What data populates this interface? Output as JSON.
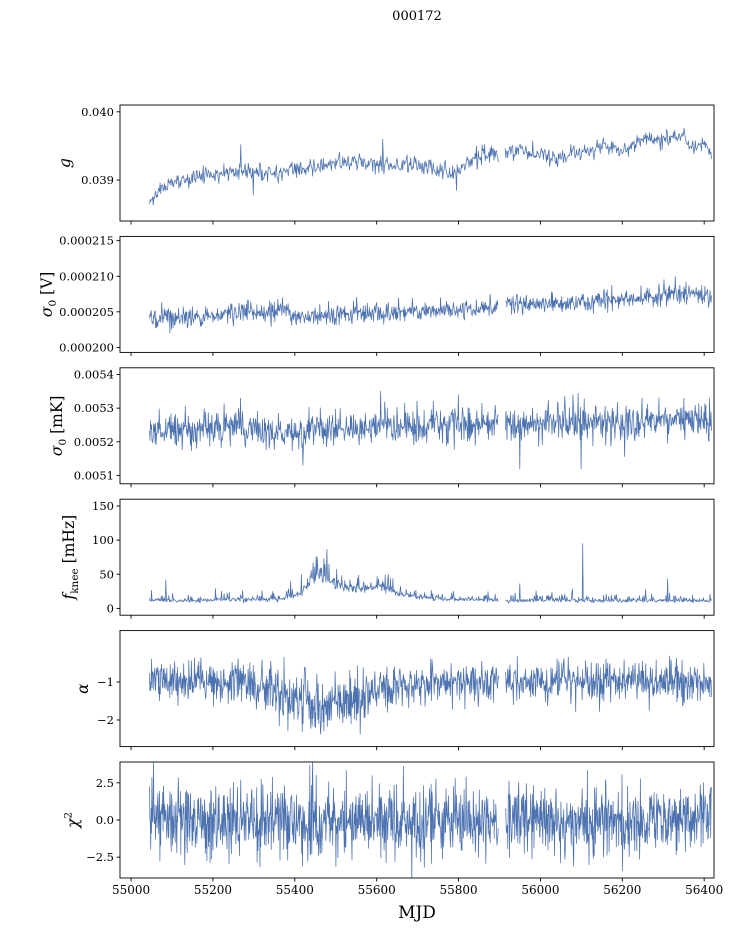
{
  "title": "000172",
  "xlabel": "MJD",
  "style": {
    "line_color": "#4c72b0",
    "axis_color": "#000000",
    "background": "#ffffff",
    "tick_label_color": "#000000"
  },
  "x_axis": {
    "xlim": [
      54973,
      56424
    ],
    "ticks": [
      55000,
      55200,
      55400,
      55600,
      55800,
      56000,
      56200,
      56400
    ],
    "tick_labels": [
      "55000",
      "55200",
      "55400",
      "55600",
      "55800",
      "56000",
      "56200",
      "56400"
    ],
    "data_range": [
      55045,
      56418
    ],
    "gaps": [
      [
        55898,
        55914
      ]
    ]
  },
  "chart_data": [
    {
      "type": "line",
      "name": "g",
      "ylabel_parts": [
        {
          "t": "g",
          "s": "i"
        }
      ],
      "ylim": [
        0.0384,
        0.0401
      ],
      "yticks": [
        {
          "v": 0.039,
          "label": "0.039"
        },
        {
          "v": 0.04,
          "label": "0.040"
        }
      ],
      "points": 900,
      "seed": 11,
      "noise": 6e-05,
      "model": "gauss",
      "trend": [
        [
          55045,
          0.03872
        ],
        [
          55080,
          0.0389
        ],
        [
          55120,
          0.039
        ],
        [
          55180,
          0.03908
        ],
        [
          55250,
          0.03912
        ],
        [
          55320,
          0.0391
        ],
        [
          55400,
          0.03915
        ],
        [
          55480,
          0.03922
        ],
        [
          55540,
          0.03928
        ],
        [
          55600,
          0.0392
        ],
        [
          55660,
          0.03925
        ],
        [
          55720,
          0.0392
        ],
        [
          55780,
          0.03908
        ],
        [
          55820,
          0.03925
        ],
        [
          55860,
          0.03935
        ],
        [
          55900,
          0.0394
        ],
        [
          55950,
          0.03945
        ],
        [
          56000,
          0.03938
        ],
        [
          56040,
          0.0393
        ],
        [
          56080,
          0.0394
        ],
        [
          56120,
          0.03945
        ],
        [
          56160,
          0.0395
        ],
        [
          56200,
          0.03942
        ],
        [
          56240,
          0.03955
        ],
        [
          56280,
          0.03958
        ],
        [
          56320,
          0.03962
        ],
        [
          56350,
          0.03965
        ],
        [
          56370,
          0.03945
        ],
        [
          56400,
          0.03955
        ],
        [
          56418,
          0.0394
        ]
      ],
      "spikes": [
        [
          55215,
          0.03895
        ],
        [
          55268,
          0.03952
        ],
        [
          55298,
          0.03878
        ],
        [
          55615,
          0.0396
        ],
        [
          55795,
          0.03885
        ],
        [
          55843,
          0.0395
        ]
      ]
    },
    {
      "type": "line",
      "name": "sigma0_V",
      "ylabel_parts": [
        {
          "t": "σ",
          "s": "i"
        },
        {
          "t": "0",
          "s": "sub"
        },
        {
          "t": " [V]",
          "s": "n"
        }
      ],
      "ylim": [
        0.0001993,
        0.0002156
      ],
      "yticks": [
        {
          "v": 0.0002,
          "label": "0.000200"
        },
        {
          "v": 0.000205,
          "label": "0.000205"
        },
        {
          "v": 0.00021,
          "label": "0.000210"
        },
        {
          "v": 0.000215,
          "label": "0.000215"
        }
      ],
      "points": 1100,
      "seed": 22,
      "noise": 7e-07,
      "model": "gauss",
      "trend": [
        [
          55045,
          0.000204
        ],
        [
          55100,
          0.0002042
        ],
        [
          55200,
          0.0002046
        ],
        [
          55300,
          0.000205
        ],
        [
          55380,
          0.0002055
        ],
        [
          55395,
          0.000204
        ],
        [
          55450,
          0.0002044
        ],
        [
          55550,
          0.0002048
        ],
        [
          55650,
          0.000205
        ],
        [
          55750,
          0.0002052
        ],
        [
          55850,
          0.0002056
        ],
        [
          55950,
          0.000206
        ],
        [
          56050,
          0.0002062
        ],
        [
          56150,
          0.0002066
        ],
        [
          56250,
          0.000207
        ],
        [
          56300,
          0.0002072
        ],
        [
          56340,
          0.0002078
        ],
        [
          56380,
          0.0002074
        ],
        [
          56418,
          0.000207
        ]
      ],
      "spikes": []
    },
    {
      "type": "line",
      "name": "sigma0_mK",
      "ylabel_parts": [
        {
          "t": "σ",
          "s": "i"
        },
        {
          "t": "0",
          "s": "sub"
        },
        {
          "t": " [mK]",
          "s": "n"
        }
      ],
      "ylim": [
        0.005075,
        0.00542
      ],
      "yticks": [
        {
          "v": 0.0051,
          "label": "0.0051"
        },
        {
          "v": 0.0052,
          "label": "0.0052"
        },
        {
          "v": 0.0053,
          "label": "0.0053"
        },
        {
          "v": 0.0054,
          "label": "0.0054"
        }
      ],
      "points": 1100,
      "seed": 33,
      "noise": 2.8e-05,
      "model": "gauss",
      "trend": [
        [
          55045,
          0.005235
        ],
        [
          55200,
          0.00524
        ],
        [
          55300,
          0.005238
        ],
        [
          55390,
          0.005225
        ],
        [
          55420,
          0.005215
        ],
        [
          55460,
          0.00524
        ],
        [
          55600,
          0.00524
        ],
        [
          55620,
          0.005255
        ],
        [
          55680,
          0.005245
        ],
        [
          55800,
          0.00525
        ],
        [
          55905,
          0.00525
        ],
        [
          56000,
          0.005255
        ],
        [
          56100,
          0.005255
        ],
        [
          56200,
          0.005258
        ],
        [
          56300,
          0.00526
        ],
        [
          56418,
          0.00527
        ]
      ],
      "spikes": [
        [
          55268,
          0.00533
        ],
        [
          55272,
          0.00529
        ],
        [
          55420,
          0.00513
        ],
        [
          55610,
          0.00535
        ],
        [
          55800,
          0.00534
        ],
        [
          55950,
          0.00512
        ],
        [
          56080,
          0.00534
        ],
        [
          56100,
          0.00512
        ],
        [
          56350,
          0.00533
        ]
      ]
    },
    {
      "type": "line",
      "name": "f_knee",
      "ylabel_parts": [
        {
          "t": "f",
          "s": "i"
        },
        {
          "t": "knee",
          "s": "sub"
        },
        {
          "t": " [mHz]",
          "s": "n"
        }
      ],
      "ylim": [
        -10,
        160
      ],
      "yticks": [
        {
          "v": 0,
          "label": "0"
        },
        {
          "v": 50,
          "label": "50"
        },
        {
          "v": 100,
          "label": "100"
        },
        {
          "v": 150,
          "label": "150"
        }
      ],
      "points": 1100,
      "seed": 44,
      "noise": 0,
      "model": "fknee",
      "trend": [
        [
          55045,
          12
        ],
        [
          55150,
          11
        ],
        [
          55250,
          13
        ],
        [
          55320,
          12
        ],
        [
          55380,
          14
        ],
        [
          55420,
          25
        ],
        [
          55440,
          40
        ],
        [
          55460,
          50
        ],
        [
          55475,
          46
        ],
        [
          55490,
          40
        ],
        [
          55510,
          35
        ],
        [
          55530,
          30
        ],
        [
          55560,
          26
        ],
        [
          55580,
          28
        ],
        [
          55600,
          33
        ],
        [
          55620,
          30
        ],
        [
          55645,
          22
        ],
        [
          55680,
          18
        ],
        [
          55720,
          15
        ],
        [
          55780,
          13
        ],
        [
          55850,
          12
        ],
        [
          55950,
          11
        ],
        [
          56050,
          12
        ],
        [
          56150,
          11
        ],
        [
          56250,
          11
        ],
        [
          56350,
          11
        ],
        [
          56418,
          11
        ]
      ],
      "spikes": [
        [
          55085,
          42
        ],
        [
          55950,
          36
        ],
        [
          56103,
          95
        ],
        [
          56310,
          43
        ]
      ]
    },
    {
      "type": "line",
      "name": "alpha",
      "ylabel_parts": [
        {
          "t": "α",
          "s": "i"
        }
      ],
      "ylim": [
        -2.7,
        0.35
      ],
      "yticks": [
        {
          "v": -1,
          "label": "−1"
        },
        {
          "v": -2,
          "label": "−2"
        }
      ],
      "points": 1300,
      "seed": 55,
      "model": "gauss",
      "noise": [
        [
          55045,
          0.26
        ],
        [
          55280,
          0.26
        ],
        [
          55320,
          0.34
        ],
        [
          55400,
          0.38
        ],
        [
          55500,
          0.4
        ],
        [
          55580,
          0.36
        ],
        [
          55650,
          0.3
        ],
        [
          55700,
          0.26
        ],
        [
          56418,
          0.26
        ]
      ],
      "trend": [
        [
          55045,
          -1.0
        ],
        [
          55280,
          -1.0
        ],
        [
          55310,
          -1.2
        ],
        [
          55340,
          -1.1
        ],
        [
          55370,
          -1.35
        ],
        [
          55400,
          -1.45
        ],
        [
          55450,
          -1.55
        ],
        [
          55500,
          -1.6
        ],
        [
          55550,
          -1.5
        ],
        [
          55590,
          -1.3
        ],
        [
          55615,
          -1.05
        ],
        [
          55650,
          -1.15
        ],
        [
          55690,
          -1.05
        ],
        [
          55730,
          -1.0
        ],
        [
          56418,
          -1.0
        ]
      ],
      "spikes": []
    },
    {
      "type": "line",
      "name": "chi2",
      "ylabel_parts": [
        {
          "t": "χ",
          "s": "i"
        },
        {
          "t": "2",
          "s": "sup"
        }
      ],
      "ylim": [
        -3.9,
        3.9
      ],
      "yticks": [
        {
          "v": -2.5,
          "label": "−2.5"
        },
        {
          "v": 0,
          "label": "0.0"
        },
        {
          "v": 2.5,
          "label": "2.5"
        }
      ],
      "points": 1400,
      "seed": 66,
      "noise": 1.15,
      "model": "gauss",
      "trend": [
        [
          55045,
          0
        ],
        [
          56418,
          0
        ]
      ],
      "spikes": []
    }
  ]
}
